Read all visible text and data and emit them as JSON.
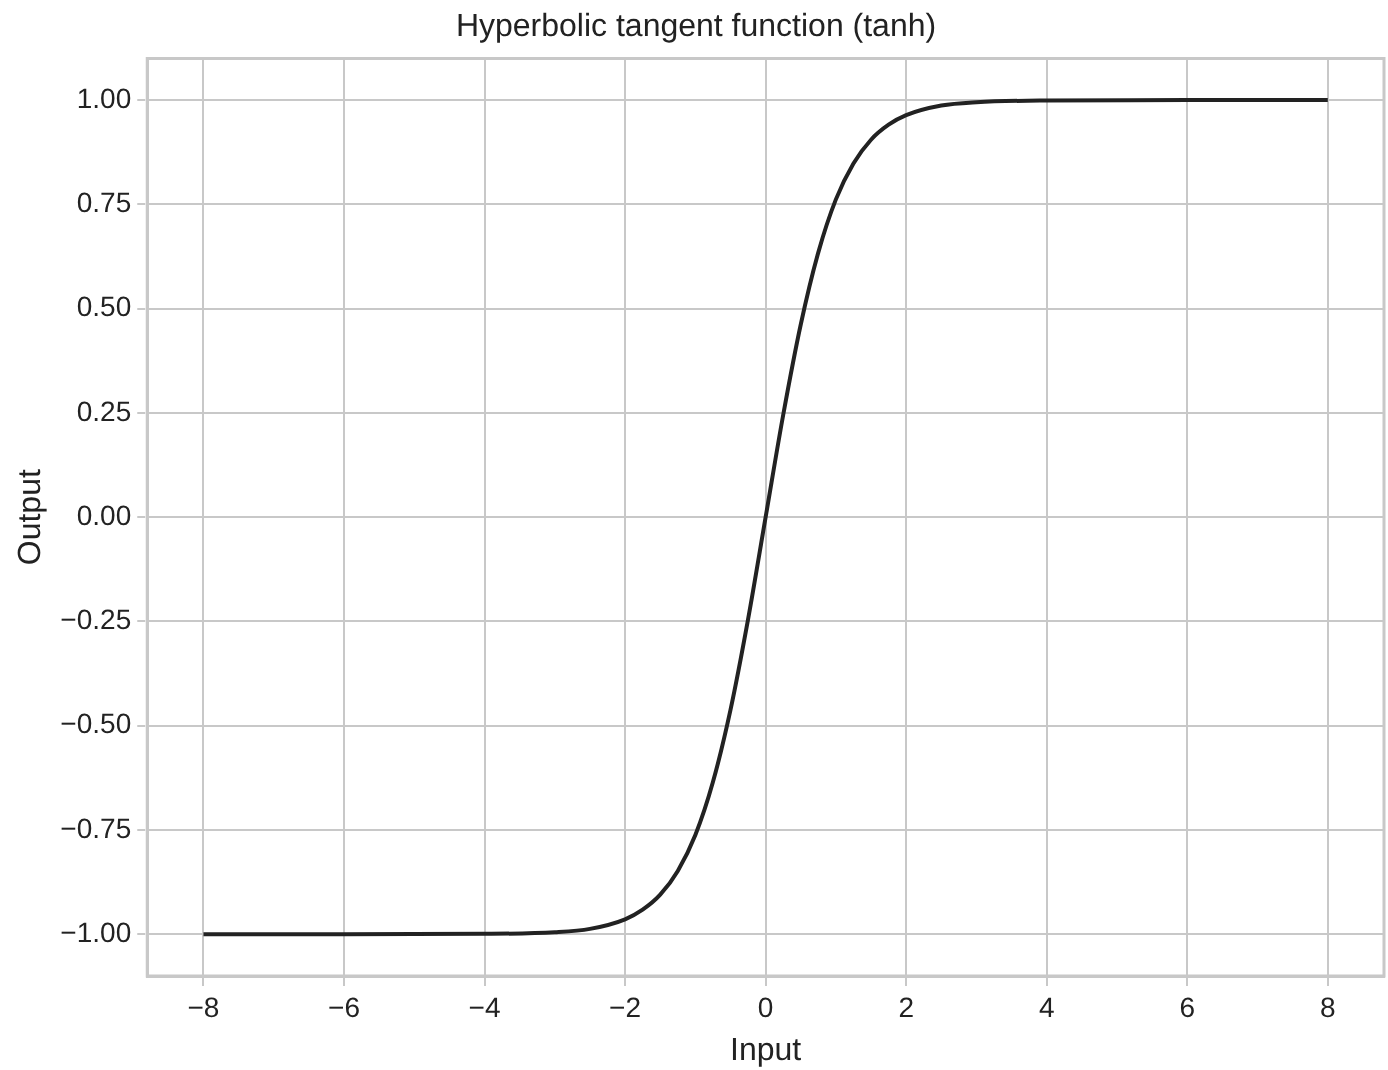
{
  "chart_data": {
    "type": "line",
    "title": "Hyperbolic tangent function (tanh)",
    "xlabel": "Input",
    "ylabel": "Output",
    "x": [
      -8,
      -6,
      -4,
      -3,
      -2.5,
      -2,
      -1.75,
      -1.5,
      -1.25,
      -1,
      -0.75,
      -0.5,
      -0.25,
      0,
      0.25,
      0.5,
      0.75,
      1,
      1.25,
      1.5,
      1.75,
      2,
      2.5,
      3,
      4,
      6,
      8
    ],
    "series": [
      {
        "color": "#222222",
        "values": [
          -1,
          -1,
          -0.999,
          -0.995,
          -0.987,
          -0.964,
          -0.941,
          -0.905,
          -0.848,
          -0.762,
          -0.635,
          -0.462,
          -0.245,
          0,
          0.245,
          0.462,
          0.635,
          0.762,
          0.848,
          0.905,
          0.941,
          0.964,
          0.987,
          0.995,
          0.999,
          1,
          1
        ]
      }
    ],
    "xlim": [
      -8.8,
      8.8
    ],
    "xticks": [
      {
        "value": -8,
        "label": "−8"
      },
      {
        "value": -6,
        "label": "−6"
      },
      {
        "value": -4,
        "label": "−4"
      },
      {
        "value": -2,
        "label": "−2"
      },
      0,
      2,
      4,
      6,
      8
    ],
    "ylim": [
      -1.1,
      1.1
    ],
    "yticks": [
      {
        "value": -1,
        "label": "−1.00"
      },
      {
        "value": -0.75,
        "label": "−0.75"
      },
      {
        "value": -0.5,
        "label": "−0.50"
      },
      {
        "value": -0.25,
        "label": "−0.25"
      },
      {
        "value": 0,
        "label": "0.00"
      },
      {
        "value": 0.25,
        "label": "0.25"
      },
      {
        "value": 0.5,
        "label": "0.50"
      },
      {
        "value": 0.75,
        "label": "0.75"
      },
      {
        "value": 1,
        "label": "1.00"
      }
    ],
    "grid": true,
    "line_style": "solid",
    "marker": "none",
    "legend": false
  }
}
